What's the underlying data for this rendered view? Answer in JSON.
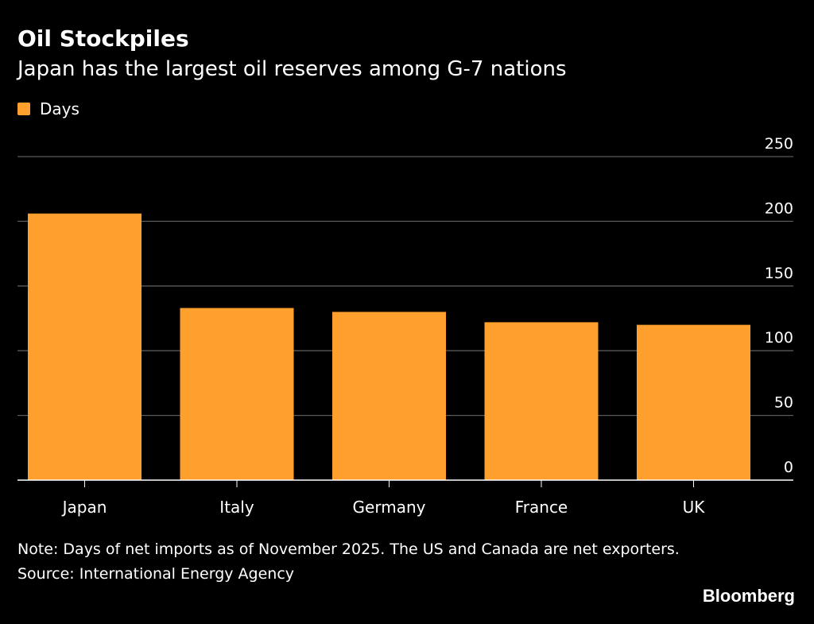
{
  "header": {
    "title": "Oil Stockpiles",
    "subtitle": "Japan has the largest oil reserves among G-7 nations"
  },
  "colors": {
    "bar": "#ffa02e",
    "background": "#000000",
    "gridline": "#5a5a5a"
  },
  "chart_data": {
    "type": "bar",
    "categories": [
      "Japan",
      "Italy",
      "Germany",
      "France",
      "UK"
    ],
    "series": [
      {
        "name": "Days",
        "values": [
          206,
          133,
          130,
          122,
          120
        ]
      }
    ],
    "ylim": [
      0,
      250
    ],
    "yticks": [
      0,
      50,
      100,
      150,
      200,
      250
    ],
    "y_axis_position": "right",
    "grid": true,
    "legend": "top-left"
  },
  "footer": {
    "note": "Note: Days of net imports as of November 2025. The US and Canada are net exporters.",
    "source": "Source: International Energy Agency",
    "brand": "Bloomberg"
  }
}
